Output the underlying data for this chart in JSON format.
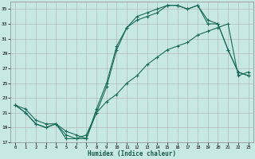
{
  "xlabel": "Humidex (Indice chaleur)",
  "bg_color": "#c8e8e4",
  "grid_color": "#b0b0b0",
  "line_color": "#1a6b5a",
  "xlim": [
    -0.5,
    23.5
  ],
  "ylim": [
    17,
    36
  ],
  "xticks": [
    0,
    1,
    2,
    3,
    4,
    5,
    6,
    7,
    8,
    9,
    10,
    11,
    12,
    13,
    14,
    15,
    16,
    17,
    18,
    19,
    20,
    21,
    22,
    23
  ],
  "yticks": [
    17,
    19,
    21,
    23,
    25,
    27,
    29,
    31,
    33,
    35
  ],
  "curve1_x": [
    0,
    1,
    2,
    3,
    4,
    5,
    6,
    7,
    8,
    9,
    10,
    11,
    12,
    13,
    14,
    15,
    16,
    17,
    18,
    19,
    20,
    21,
    22,
    23
  ],
  "curve1_y": [
    22.0,
    21.5,
    20.0,
    19.5,
    19.5,
    18.5,
    18.0,
    17.5,
    21.5,
    25.0,
    30.0,
    32.5,
    34.0,
    34.5,
    35.0,
    35.5,
    35.5,
    35.0,
    35.5,
    33.5,
    33.0,
    29.5,
    26.5,
    26.0
  ],
  "curve2_x": [
    0,
    1,
    2,
    3,
    4,
    5,
    6,
    7,
    8,
    9,
    10,
    11,
    12,
    13,
    14,
    15,
    16,
    17,
    18,
    19,
    20,
    21,
    22,
    23
  ],
  "curve2_y": [
    22.0,
    21.0,
    19.5,
    19.0,
    19.5,
    18.0,
    17.5,
    18.0,
    21.0,
    22.5,
    23.5,
    25.0,
    26.0,
    27.5,
    28.5,
    29.5,
    30.0,
    30.5,
    31.5,
    32.0,
    32.5,
    33.0,
    26.0,
    26.5
  ],
  "curve3_x": [
    0,
    1,
    2,
    3,
    4,
    5,
    6,
    7,
    8,
    9,
    10,
    11,
    12,
    13,
    14,
    15,
    16,
    17,
    18,
    19,
    20,
    21,
    22,
    23
  ],
  "curve3_y": [
    22.0,
    21.0,
    19.5,
    19.0,
    19.5,
    17.5,
    17.5,
    17.5,
    21.0,
    24.5,
    29.5,
    32.5,
    33.5,
    34.0,
    34.5,
    35.5,
    35.5,
    35.0,
    35.5,
    33.0,
    33.0,
    29.5,
    26.5,
    26.0
  ]
}
